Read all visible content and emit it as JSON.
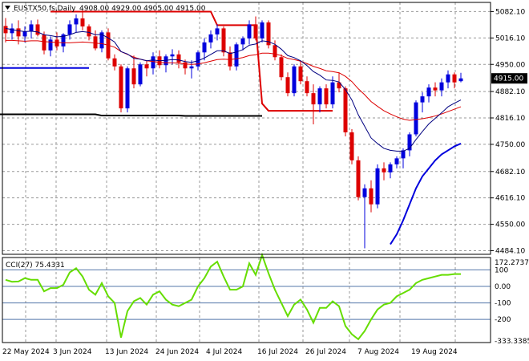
{
  "header": {
    "symbol": "EUSTX50.fs,Daily",
    "ohlc": "4908.00 4929.00 4905.00 4915.00"
  },
  "price_axis": {
    "ticks": [
      "5082.10",
      "5016.10",
      "4950.00",
      "4882.10",
      "4816.10",
      "4750.00",
      "4682.10",
      "4616.10",
      "4550.00",
      "4484.10"
    ],
    "current_label": "4915.00"
  },
  "cci_panel": {
    "label": "CCI(27) 75.4331",
    "ticks": [
      "172.2737",
      "100",
      "0.00",
      "-100",
      "-200",
      "-333.3385"
    ]
  },
  "date_axis": {
    "labels": [
      "22 May 2024",
      "3 Jun 2024",
      "13 Jun 2024",
      "24 Jun 2024",
      "4 Jul 2024",
      "16 Jul 2024",
      "26 Jul 2024",
      "7 Aug 2024",
      "19 Aug 2024"
    ]
  },
  "colors": {
    "bull": "#0000dd",
    "bear": "#dd0000",
    "cci": "#66dd00",
    "ema_short": "#000080",
    "ema_long": "#dd0000",
    "ema_slow": "#0000dd",
    "level_red": "#dd0000",
    "level_black": "#000000",
    "level_blue": "#0000dd"
  },
  "chart_data": {
    "type": "candlestick",
    "price_range": [
      4475,
      5105
    ],
    "cci_range": [
      -340,
      175
    ],
    "candles": [
      [
        5046,
        5066,
        5005,
        5028
      ],
      [
        5028,
        5052,
        5012,
        5040
      ],
      [
        5040,
        5060,
        5000,
        5020
      ],
      [
        5020,
        5045,
        5005,
        5032
      ],
      [
        5032,
        5060,
        5015,
        5050
      ],
      [
        5050,
        5062,
        5020,
        5024
      ],
      [
        5024,
        5032,
        4975,
        4985
      ],
      [
        4985,
        5020,
        4970,
        5012
      ],
      [
        5012,
        5030,
        4985,
        4995
      ],
      [
        4995,
        5028,
        4980,
        5025
      ],
      [
        5025,
        5060,
        5012,
        5050
      ],
      [
        5050,
        5075,
        5030,
        5065
      ],
      [
        5065,
        5085,
        5035,
        5045
      ],
      [
        5045,
        5050,
        5010,
        5020
      ],
      [
        5020,
        5035,
        4985,
        4990
      ],
      [
        4990,
        5035,
        4980,
        5030
      ],
      [
        5030,
        5040,
        4960,
        4965
      ],
      [
        4965,
        4975,
        4935,
        4945
      ],
      [
        4945,
        4950,
        4830,
        4840
      ],
      [
        4840,
        4945,
        4830,
        4940
      ],
      [
        4940,
        4972,
        4890,
        4900
      ],
      [
        4900,
        4955,
        4895,
        4950
      ],
      [
        4950,
        4960,
        4920,
        4940
      ],
      [
        4940,
        4980,
        4925,
        4970
      ],
      [
        4970,
        4985,
        4940,
        4948
      ],
      [
        4948,
        4975,
        4930,
        4970
      ],
      [
        4970,
        4988,
        4950,
        4975
      ],
      [
        4975,
        4985,
        4940,
        4955
      ],
      [
        4955,
        4962,
        4925,
        4940
      ],
      [
        4940,
        4960,
        4915,
        4945
      ],
      [
        4945,
        4985,
        4935,
        4980
      ],
      [
        4980,
        5015,
        4960,
        5005
      ],
      [
        5005,
        5035,
        4990,
        5025
      ],
      [
        5025,
        5050,
        5010,
        5040
      ],
      [
        5040,
        5045,
        4970,
        4980
      ],
      [
        4980,
        4995,
        4935,
        4945
      ],
      [
        4945,
        5005,
        4935,
        5000
      ],
      [
        5000,
        5020,
        4985,
        5015
      ],
      [
        5015,
        5060,
        5000,
        5050
      ],
      [
        5050,
        5070,
        5010,
        5015
      ],
      [
        5015,
        5060,
        5005,
        5055
      ],
      [
        5055,
        5060,
        4990,
        4998
      ],
      [
        4998,
        5010,
        4960,
        4968
      ],
      [
        4968,
        4975,
        4910,
        4918
      ],
      [
        4918,
        4930,
        4870,
        4878
      ],
      [
        4878,
        4950,
        4870,
        4945
      ],
      [
        4945,
        4960,
        4900,
        4908
      ],
      [
        4908,
        4920,
        4870,
        4878
      ],
      [
        4878,
        4900,
        4800,
        4850
      ],
      [
        4850,
        4895,
        4830,
        4890
      ],
      [
        4890,
        4900,
        4840,
        4850
      ],
      [
        4850,
        4920,
        4840,
        4905
      ],
      [
        4905,
        4930,
        4880,
        4890
      ],
      [
        4890,
        4895,
        4770,
        4780
      ],
      [
        4780,
        4788,
        4700,
        4710
      ],
      [
        4710,
        4720,
        4610,
        4618
      ],
      [
        4618,
        4650,
        4490,
        4640
      ],
      [
        4640,
        4660,
        4580,
        4600
      ],
      [
        4600,
        4700,
        4590,
        4690
      ],
      [
        4690,
        4705,
        4660,
        4680
      ],
      [
        4680,
        4705,
        4665,
        4700
      ],
      [
        4700,
        4720,
        4690,
        4715
      ],
      [
        4715,
        4740,
        4690,
        4735
      ],
      [
        4735,
        4780,
        4720,
        4775
      ],
      [
        4775,
        4860,
        4770,
        4855
      ],
      [
        4855,
        4880,
        4830,
        4870
      ],
      [
        4870,
        4900,
        4855,
        4892
      ],
      [
        4892,
        4905,
        4870,
        4885
      ],
      [
        4885,
        4915,
        4870,
        4905
      ],
      [
        4905,
        4935,
        4890,
        4925
      ],
      [
        4925,
        4930,
        4890,
        4905
      ],
      [
        4908,
        4929,
        4905,
        4915
      ]
    ],
    "ema_short": [
      5040,
      5037,
      5034,
      5032,
      5033,
      5031,
      5024,
      5022,
      5019,
      5020,
      5024,
      5030,
      5032,
      5030,
      5024,
      5025,
      5016,
      5006,
      4982,
      4976,
      4965,
      4963,
      4959,
      4961,
      4959,
      4960,
      4962,
      4961,
      4957,
      4955,
      4959,
      4966,
      4975,
      4984,
      4984,
      4977,
      4981,
      4987,
      4998,
      5001,
      5009,
      5007,
      5000,
      4988,
      4972,
      4967,
      4959,
      4947,
      4932,
      4923,
      4911,
      4910,
      4906,
      4887,
      4861,
      4824,
      4795,
      4766,
      4752,
      4740,
      4735,
      4733,
      4733,
      4740,
      4762,
      4782,
      4801,
      4815,
      4829,
      4844,
      4853,
      4861
    ],
    "ema_long": [
      5010,
      5010,
      5009,
      5008,
      5009,
      5009,
      5007,
      5006,
      5005,
      5004,
      5004,
      5005,
      5006,
      5005,
      5003,
      5002,
      4998,
      4993,
      4982,
      4975,
      4968,
      4963,
      4959,
      4957,
      4955,
      4954,
      4954,
      4953,
      4951,
      4950,
      4951,
      4954,
      4958,
      4962,
      4963,
      4962,
      4964,
      4967,
      4972,
      4974,
      4978,
      4978,
      4976,
      4972,
      4965,
      4962,
      4958,
      4952,
      4945,
      4940,
      4934,
      4932,
      4929,
      4920,
      4907,
      4889,
      4874,
      4857,
      4845,
      4834,
      4826,
      4819,
      4813,
      4810,
      4812,
      4814,
      4817,
      4821,
      4826,
      4832,
      4838,
      4844
    ],
    "ema_slow": [
      4500,
      4525,
      4560,
      4600,
      4640,
      4670,
      4690,
      4710,
      4725,
      4735,
      4745,
      4752
    ],
    "ema_slow_start_index": 60,
    "cci": [
      40,
      28,
      30,
      50,
      40,
      40,
      -30,
      -10,
      -10,
      10,
      85,
      110,
      60,
      -20,
      -50,
      20,
      -60,
      -100,
      -310,
      -150,
      -90,
      -70,
      -110,
      -50,
      -30,
      -80,
      -110,
      -120,
      -100,
      -80,
      0,
      50,
      120,
      150,
      60,
      -20,
      -20,
      0,
      140,
      70,
      190,
      80,
      -20,
      -100,
      -180,
      -110,
      -80,
      -140,
      -220,
      -130,
      -130,
      -90,
      -120,
      -240,
      -290,
      -320,
      -270,
      -200,
      -140,
      -110,
      -100,
      -60,
      -40,
      -20,
      20,
      40,
      50,
      60,
      70,
      70,
      75,
      75
    ],
    "levels": [
      {
        "color": "red",
        "points": [
          [
            7,
            5082
          ],
          [
            32,
            5082
          ],
          [
            33,
            5048
          ],
          [
            39,
            5048
          ],
          [
            40,
            4852
          ],
          [
            41,
            4834
          ],
          [
            51,
            4834
          ]
        ]
      },
      {
        "color": "black",
        "points": [
          [
            -1,
            4825
          ],
          [
            14,
            4825
          ],
          [
            15,
            4822
          ],
          [
            27,
            4822
          ],
          [
            28,
            4821
          ],
          [
            40,
            4821
          ]
        ]
      },
      {
        "color": "blue",
        "points": [
          [
            -1,
            4941
          ],
          [
            13,
            4941
          ]
        ]
      }
    ]
  }
}
